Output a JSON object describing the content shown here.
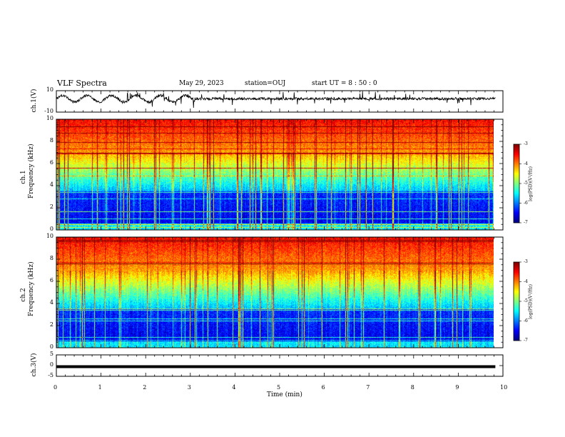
{
  "header": {
    "title": "VLF Spectra",
    "date": "May 29, 2023",
    "station": "station=OUJ",
    "start": "start  UT =   8  : 50 : 0"
  },
  "colors": {
    "colormap": [
      "#00007f",
      "#0000ff",
      "#007fff",
      "#00ffff",
      "#7fff7f",
      "#ffff00",
      "#ff7f00",
      "#ff0000",
      "#7f0000"
    ],
    "trace": "#000000"
  },
  "chart_data": [
    {
      "type": "line",
      "name": "ch1-waveform",
      "ylabel": "ch.1(V)",
      "ylim": [
        -10,
        10
      ],
      "yticks": [
        "10",
        "-10"
      ],
      "xlim": [
        0,
        10
      ],
      "x_max_data": 9.83,
      "baseline": 2.5,
      "oscillation": {
        "period_min": 0.55,
        "amplitude": 3.0,
        "ends_min": 3.1
      },
      "noise": 1.2
    },
    {
      "type": "heatmap",
      "name": "ch1-spectrogram",
      "ylabel": "ch.1\nFrequency (kHz)",
      "ylim": [
        0,
        10
      ],
      "yticks": [
        "0",
        "2",
        "4",
        "6",
        "8",
        "10"
      ],
      "xlim": [
        0,
        10
      ],
      "x_max_data": 9.83,
      "colorbar": {
        "label": "log(PSD)(V²/Hz)",
        "range": [
          -7,
          -3
        ],
        "ticks": [
          "-3",
          "-4",
          "-5",
          "-6",
          "-7"
        ]
      },
      "seed": 7
    },
    {
      "type": "heatmap",
      "name": "ch2-spectrogram",
      "ylabel": "ch.2\nFrequency (kHz)",
      "ylim": [
        0,
        10
      ],
      "yticks": [
        "0",
        "2",
        "4",
        "6",
        "8",
        "10"
      ],
      "xlim": [
        0,
        10
      ],
      "x_max_data": 9.83,
      "colorbar": {
        "label": "log(PSD)(V²/Hz)",
        "range": [
          -7,
          -3
        ],
        "ticks": [
          "-3",
          "-4",
          "-5",
          "-6",
          "-7"
        ]
      },
      "seed": 19
    },
    {
      "type": "line",
      "name": "ch3-waveform",
      "ylabel": "ch.3(V)",
      "ylim": [
        -5,
        5
      ],
      "yticks": [
        "5",
        "0",
        "-5"
      ],
      "xlim": [
        0,
        10
      ],
      "x_max_data": 9.83,
      "value": -0.5
    }
  ],
  "xaxis": {
    "label": "Time  (min)",
    "ticks": [
      "0",
      "1",
      "2",
      "3",
      "4",
      "5",
      "6",
      "7",
      "8",
      "9",
      "10"
    ]
  }
}
